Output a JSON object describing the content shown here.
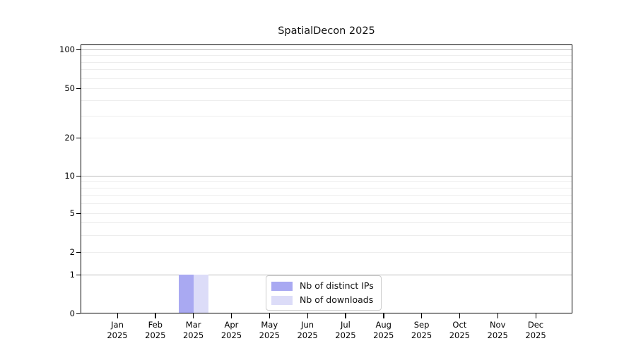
{
  "chart_data": {
    "type": "bar",
    "title": "SpatialDecon 2025",
    "categories": [
      "Jan 2025",
      "Feb 2025",
      "Mar 2025",
      "Apr 2025",
      "May 2025",
      "Jun 2025",
      "Jul 2025",
      "Aug 2025",
      "Sep 2025",
      "Oct 2025",
      "Nov 2025",
      "Dec 2025"
    ],
    "series": [
      {
        "name": "Nb of distinct IPs",
        "color": "#a9a9f2",
        "values": [
          0,
          0,
          1,
          0,
          0,
          0,
          0,
          0,
          0,
          0,
          0,
          0
        ]
      },
      {
        "name": "Nb of downloads",
        "color": "#dcdcf8",
        "values": [
          0,
          0,
          1,
          0,
          0,
          0,
          0,
          0,
          0,
          0,
          0,
          0
        ]
      }
    ],
    "xlabel": "",
    "ylabel": "",
    "yaxis": {
      "scale": "log-like (linear segment between 0 and 1)",
      "ticks": [
        100,
        50,
        20,
        10,
        5,
        2,
        1,
        0
      ],
      "minor_gridlines": [
        90,
        80,
        70,
        60,
        40,
        30,
        9,
        8,
        7,
        6,
        4,
        3
      ],
      "emphasized_gridlines": [
        100,
        10,
        1
      ],
      "ylim": [
        0,
        110
      ]
    },
    "grid": true,
    "legend_position": "lower center",
    "colors": {
      "grid_minor": "#ededed",
      "grid_decade": "#bbbbbb",
      "spine": "#000000",
      "background": "#ffffff"
    }
  }
}
